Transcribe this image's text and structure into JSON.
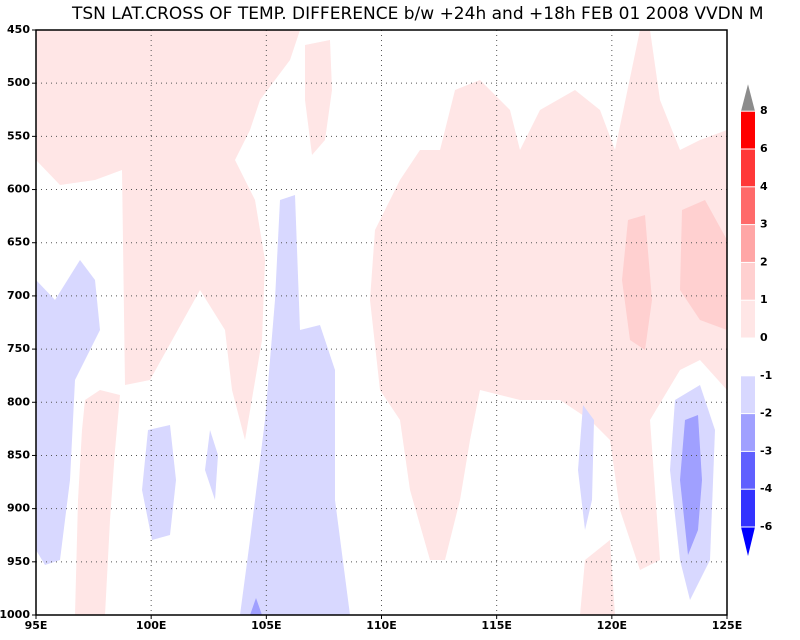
{
  "chart_data": {
    "type": "contour",
    "title": "TSN LAT.CROSS OF TEMP. DIFFERENCE b/w +24h and +18h FEB 01 2008 VVDN M",
    "xlim": [
      95,
      125
    ],
    "xticks": [
      {
        "value": 95,
        "label": "95E"
      },
      {
        "value": 100,
        "label": "100E"
      },
      {
        "value": 105,
        "label": "105E"
      },
      {
        "value": 110,
        "label": "110E"
      },
      {
        "value": 115,
        "label": "115E"
      },
      {
        "value": 120,
        "label": "120E"
      },
      {
        "value": 125,
        "label": "125E"
      }
    ],
    "ylim": [
      1000,
      450
    ],
    "yticks": [
      450,
      500,
      550,
      600,
      650,
      700,
      750,
      800,
      850,
      900,
      950,
      1000
    ],
    "grid": true,
    "colorbar": {
      "levels": [
        -6,
        -4,
        -3,
        -2,
        -1,
        0,
        1,
        2,
        3,
        4,
        6,
        8
      ],
      "colors": [
        "#0000ff",
        "#3333ff",
        "#6060ff",
        "#a0a0ff",
        "#d8d8ff",
        "#ffffff",
        "#ffe6e6",
        "#ffd0d0",
        "#ffa6a6",
        "#ff6a6a",
        "#ff3838",
        "#ff0000",
        "#8c8c8c"
      ]
    }
  }
}
